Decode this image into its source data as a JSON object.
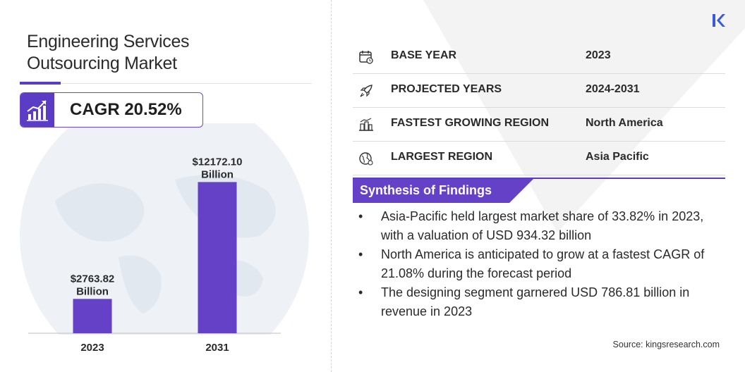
{
  "title_line1": "Engineering Services",
  "title_line2": "Outsourcing Market",
  "cagr": {
    "text": "CAGR 20.52%"
  },
  "chart_data": {
    "type": "bar",
    "categories": [
      "2023",
      "2031"
    ],
    "values": [
      2763.82,
      12172.1
    ],
    "value_labels": [
      [
        "$2763.82",
        "Billion"
      ],
      [
        "$12172.10",
        "Billion"
      ]
    ],
    "ylim": [
      0,
      13500
    ],
    "bar_color": "#6441c6"
  },
  "info_rows": [
    {
      "icon": "calendar-icon",
      "label": "BASE YEAR",
      "value": "2023"
    },
    {
      "icon": "rocket-icon",
      "label": "PROJECTED YEARS",
      "value": "2024-2031"
    },
    {
      "icon": "city-growth-icon",
      "label": "FASTEST GROWING REGION",
      "value": "North America"
    },
    {
      "icon": "globe-icon",
      "label": "LARGEST REGION",
      "value": "Asia Pacific"
    }
  ],
  "synthesis": {
    "title": "Synthesis of Findings",
    "bullet": "•",
    "items": [
      "Asia-Pacific held largest market share of 33.82% in 2023, with a valuation of USD 934.32 billion",
      "North America is anticipated to grow at a fastest CAGR of 21.08% during the forecast period",
      "The designing segment garnered USD 786.81 billion in revenue in 2023"
    ]
  },
  "source": "Source:  kingsresearch.com",
  "colors": {
    "accent": "#5b3cc4",
    "logo": "#3a5bd9"
  }
}
